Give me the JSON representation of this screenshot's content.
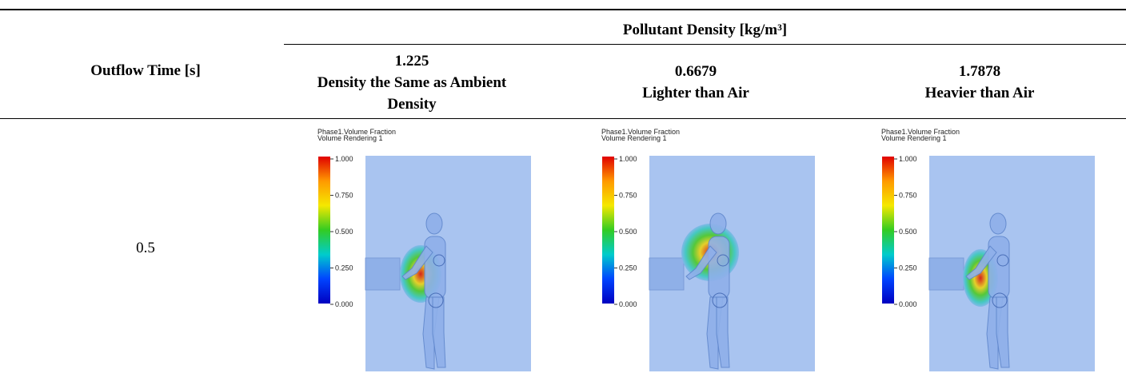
{
  "table": {
    "header": {
      "time": "Outflow Time [s]",
      "group": "Pollutant Density [kg/m³]",
      "columns": [
        {
          "value": "1.225",
          "description": "Density the Same as Ambient Density"
        },
        {
          "value": "0.6679",
          "description": "Lighter than Air"
        },
        {
          "value": "1.7878",
          "description": "Heavier than Air"
        }
      ]
    },
    "rows": [
      {
        "time": "0.5",
        "images": [
          {
            "title": "Phase1.Volume Fraction",
            "subtitle": "Volume Rendering 1",
            "colorbar_ticks": [
              "1.000",
              "0.750",
              "0.500",
              "0.250",
              "0.000"
            ]
          },
          {
            "title": "Phase1.Volume Fraction",
            "subtitle": "Volume Rendering 1",
            "colorbar_ticks": [
              "1.000",
              "0.750",
              "0.500",
              "0.250",
              "0.000"
            ]
          },
          {
            "title": "Phase1.Volume Fraction",
            "subtitle": "Volume Rendering 1",
            "colorbar_ticks": [
              "1.000",
              "0.750",
              "0.500",
              "0.250",
              "0.000"
            ]
          }
        ]
      }
    ]
  }
}
